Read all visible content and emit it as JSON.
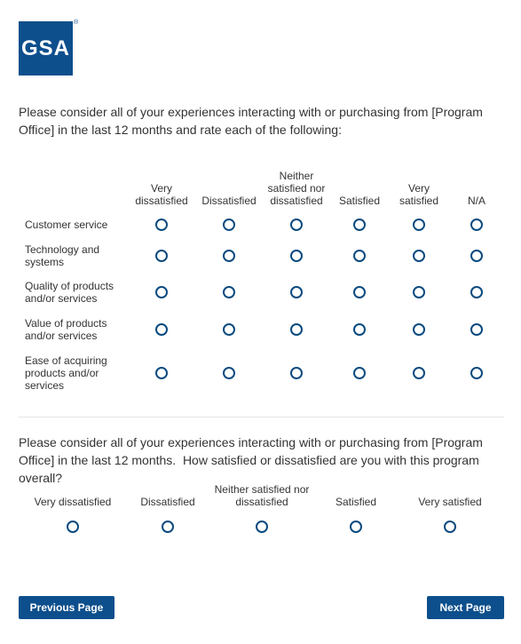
{
  "logo": {
    "text": "GSA",
    "mark": "®"
  },
  "question_1": {
    "text": "Please consider all of your experiences interacting with or purchasing from [Program Office] in the last 12 months and rate each of the following:",
    "columns": [
      "Very dissatisfied",
      "Dissatisfied",
      "Neither satisfied nor dissatisfied",
      "Satisfied",
      "Very satisfied",
      "N/A"
    ],
    "rows": [
      "Customer service",
      "Technology and systems",
      "Quality of products and/or services",
      "Value of products and/or services",
      "Ease of acquiring products and/or services"
    ]
  },
  "question_2": {
    "text": "Please consider all of your experiences interacting with or purchasing from [Program Office] in the last 12 months.  How satisfied or dissatisfied are you with this program overall?",
    "options": [
      "Very dissatisfied",
      "Dissatisfied",
      "Neither satisfied nor dissatisfied",
      "Satisfied",
      "Very satisfied"
    ]
  },
  "buttons": {
    "previous": "Previous Page",
    "next": "Next Page"
  }
}
